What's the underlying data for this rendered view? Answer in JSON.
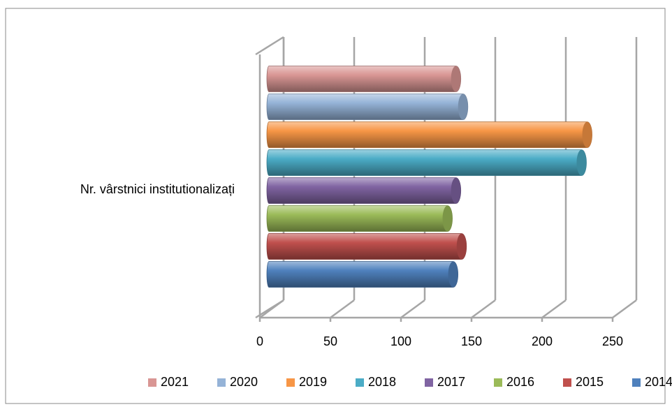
{
  "chart_data": {
    "type": "bar3d_horizontal",
    "categories": [
      "Nr. vârstnici institutionalizați"
    ],
    "series": [
      {
        "name": "2014",
        "color": "#4f81bd",
        "values": [
          132
        ]
      },
      {
        "name": "2015",
        "color": "#c0504d",
        "values": [
          138
        ]
      },
      {
        "name": "2016",
        "color": "#9bbb59",
        "values": [
          128
        ]
      },
      {
        "name": "2017",
        "color": "#8064a2",
        "values": [
          134
        ]
      },
      {
        "name": "2018",
        "color": "#4bacc6",
        "values": [
          223
        ]
      },
      {
        "name": "2019",
        "color": "#f79646",
        "values": [
          227
        ]
      },
      {
        "name": "2020",
        "color": "#95b3d7",
        "values": [
          139
        ]
      },
      {
        "name": "2021",
        "color": "#d99694",
        "values": [
          134
        ]
      }
    ],
    "xlim": [
      0,
      250
    ],
    "xticks": [
      0,
      50,
      100,
      150,
      200,
      250
    ],
    "grid": true,
    "legend": "bottom"
  }
}
